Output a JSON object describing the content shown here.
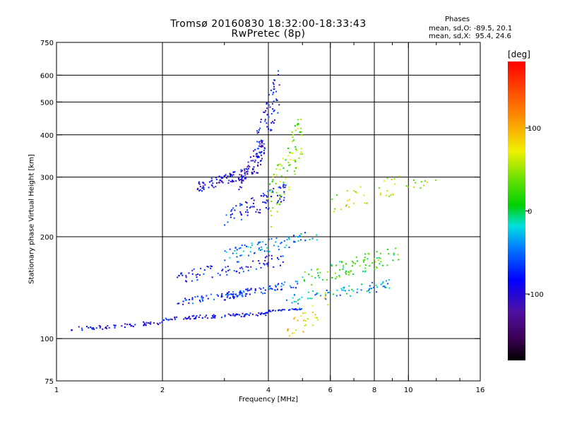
{
  "chart_data": {
    "type": "scatter",
    "title_line1": "Tromsø 20160830 18:32:00-18:33:43",
    "title_line2": "RwPretec (8p)",
    "stats": {
      "heading": "Phases",
      "line_o": "mean, sd,O: -89.5, 20.1",
      "line_x": "mean, sd,X:  95.4, 24.6"
    },
    "xlabel": "Frequency [MHz]",
    "ylabel": "Stationary phase Virtual Height [km]",
    "x_scale": "log",
    "y_scale": "log",
    "xlim": [
      1,
      16
    ],
    "ylim": [
      75,
      750
    ],
    "x_ticks": [
      1,
      2,
      4,
      6,
      8,
      10,
      16
    ],
    "x_minor_ticks": [
      3,
      5,
      7,
      9,
      12,
      14
    ],
    "y_ticks": [
      75,
      100,
      200,
      300,
      400,
      500,
      600,
      750
    ],
    "y_gridlines": [
      100,
      200,
      300,
      400,
      500,
      600
    ],
    "x_gridlines": [
      2,
      4,
      6,
      8,
      10
    ],
    "grid": true,
    "colorbar": {
      "label": "[deg]",
      "range": [
        -180,
        180
      ],
      "ticks": [
        100,
        0,
        -100
      ]
    },
    "traces": [
      {
        "f_range": [
          1.1,
          2.0
        ],
        "h": [
          105,
          113
        ],
        "phase": -95,
        "n": 55
      },
      {
        "f_range": [
          2.0,
          4.0
        ],
        "h": [
          113,
          120
        ],
        "phase": -90,
        "n": 90
      },
      {
        "f_range": [
          4.0,
          5.0
        ],
        "h": [
          120,
          123
        ],
        "phase": -75,
        "n": 30
      },
      {
        "f_range": [
          2.2,
          3.5
        ],
        "h": [
          125,
          140
        ],
        "phase": -75,
        "n": 55
      },
      {
        "f_range": [
          3.0,
          5.0
        ],
        "h": [
          130,
          150
        ],
        "phase": -65,
        "n": 65
      },
      {
        "f_range": [
          4.5,
          9.0
        ],
        "h": [
          125,
          150
        ],
        "phase": -30,
        "n": 70
      },
      {
        "f_range": [
          2.2,
          4.5
        ],
        "h": [
          145,
          180
        ],
        "phase": -85,
        "n": 80
      },
      {
        "f_range": [
          3.0,
          5.5
        ],
        "h": [
          170,
          210
        ],
        "phase": -40,
        "n": 80
      },
      {
        "f_range": [
          2.5,
          3.5
        ],
        "h": [
          270,
          320
        ],
        "phase": -95,
        "n": 85
      },
      {
        "f_range": [
          3.3,
          3.9
        ],
        "h": [
          270,
          400
        ],
        "phase": -100,
        "n": 70
      },
      {
        "f_range": [
          3.7,
          4.3
        ],
        "h": [
          300,
          650
        ],
        "phase": -85,
        "n": 75
      },
      {
        "f_range": [
          4.0,
          5.0
        ],
        "h": [
          200,
          480
        ],
        "phase": 40,
        "n": 90
      },
      {
        "f_range": [
          3.0,
          4.5
        ],
        "h": [
          210,
          290
        ],
        "phase": -80,
        "n": 80
      },
      {
        "f_range": [
          5.0,
          9.5
        ],
        "h": [
          140,
          190
        ],
        "phase": 20,
        "n": 90
      },
      {
        "f_range": [
          6.0,
          12.0
        ],
        "h": [
          230,
          330
        ],
        "phase": 60,
        "n": 45
      },
      {
        "f_range": [
          4.5,
          6.0
        ],
        "h": [
          95,
          140
        ],
        "phase": 80,
        "n": 30
      }
    ]
  }
}
